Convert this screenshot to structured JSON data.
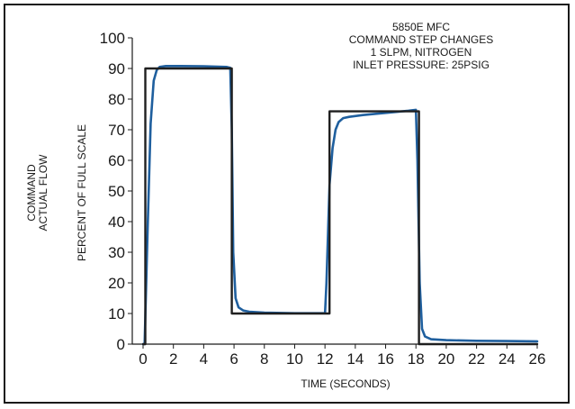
{
  "chart_data": {
    "type": "line",
    "title_lines": [
      "5850E MFC",
      "COMMAND STEP CHANGES",
      "1 SLPM, NITROGEN",
      "INLET PRESSURE: 25PSIG"
    ],
    "xlabel": "TIME (SECONDS)",
    "ylabel_lines": [
      "COMMAND",
      "ACTUAL FLOW",
      "PERCENT OF FULL SCALE"
    ],
    "xlim": [
      0,
      26
    ],
    "ylim": [
      0,
      100
    ],
    "xticks": [
      0,
      2,
      4,
      6,
      8,
      10,
      12,
      14,
      16,
      18,
      20,
      22,
      24,
      26
    ],
    "yticks": [
      0,
      10,
      20,
      30,
      40,
      50,
      60,
      70,
      80,
      90,
      100
    ],
    "grid": false,
    "series": [
      {
        "key": "command",
        "color": "#1f1f1f",
        "x": [
          0.0,
          0.15,
          0.15,
          5.85,
          5.85,
          12.3,
          12.3,
          18.2,
          18.2,
          26.0
        ],
        "y": [
          0,
          0,
          90,
          90,
          10,
          10,
          76,
          76,
          0,
          0
        ]
      },
      {
        "key": "actual",
        "color": "#1f5f9e",
        "x": [
          0.0,
          0.1,
          0.3,
          0.5,
          0.7,
          0.9,
          1.1,
          1.5,
          2.5,
          4.0,
          5.5,
          5.75,
          5.85,
          5.95,
          6.1,
          6.3,
          6.6,
          7.0,
          8.0,
          10.0,
          12.0,
          12.1,
          12.3,
          12.5,
          12.7,
          12.9,
          13.2,
          13.6,
          14.5,
          16.0,
          17.5,
          18.0,
          18.1,
          18.25,
          18.4,
          18.6,
          19.0,
          20.0,
          22.0,
          24.0,
          26.0
        ],
        "y": [
          0,
          0,
          38,
          72,
          86,
          89.5,
          90.5,
          90.8,
          90.8,
          90.7,
          90.5,
          90.2,
          70,
          30,
          15,
          12,
          11,
          10.6,
          10.3,
          10.1,
          10.1,
          20,
          52,
          64,
          70,
          72.5,
          73.8,
          74.2,
          74.8,
          75.5,
          76.2,
          76.5,
          60,
          20,
          5,
          2.5,
          1.6,
          1.3,
          1.1,
          1.0,
          0.9
        ]
      }
    ]
  }
}
